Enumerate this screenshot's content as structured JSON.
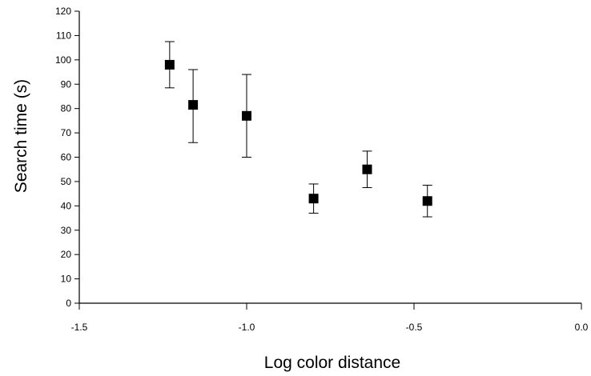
{
  "chart_data": {
    "type": "scatter",
    "title": "",
    "xlabel": "Log color distance",
    "ylabel": "Search time (s)",
    "xlim": [
      -1.5,
      0.0
    ],
    "ylim": [
      0,
      120
    ],
    "x_ticks": [
      -1.5,
      -1.0,
      -0.5,
      0.0
    ],
    "x_tick_labels": [
      "-1.5",
      "-1.0",
      "-0.5",
      "0.0"
    ],
    "y_ticks": [
      0,
      10,
      20,
      30,
      40,
      50,
      60,
      70,
      80,
      90,
      100,
      110,
      120
    ],
    "y_tick_labels": [
      "0",
      "10",
      "20",
      "30",
      "40",
      "50",
      "60",
      "70",
      "80",
      "90",
      "100",
      "110",
      "120"
    ],
    "grid": false,
    "legend": "none",
    "marker": "filled-square",
    "color": "#000000",
    "series": [
      {
        "points": [
          {
            "x": -1.23,
            "y": 98,
            "y_low": 88.5,
            "y_high": 107.5
          },
          {
            "x": -1.16,
            "y": 81.5,
            "y_low": 66,
            "y_high": 96
          },
          {
            "x": -1.0,
            "y": 77,
            "y_low": 60,
            "y_high": 94
          },
          {
            "x": -0.8,
            "y": 43,
            "y_low": 37,
            "y_high": 49
          },
          {
            "x": -0.64,
            "y": 55,
            "y_low": 47.5,
            "y_high": 62.5
          },
          {
            "x": -0.46,
            "y": 42,
            "y_low": 35.5,
            "y_high": 48.5
          }
        ]
      }
    ]
  }
}
